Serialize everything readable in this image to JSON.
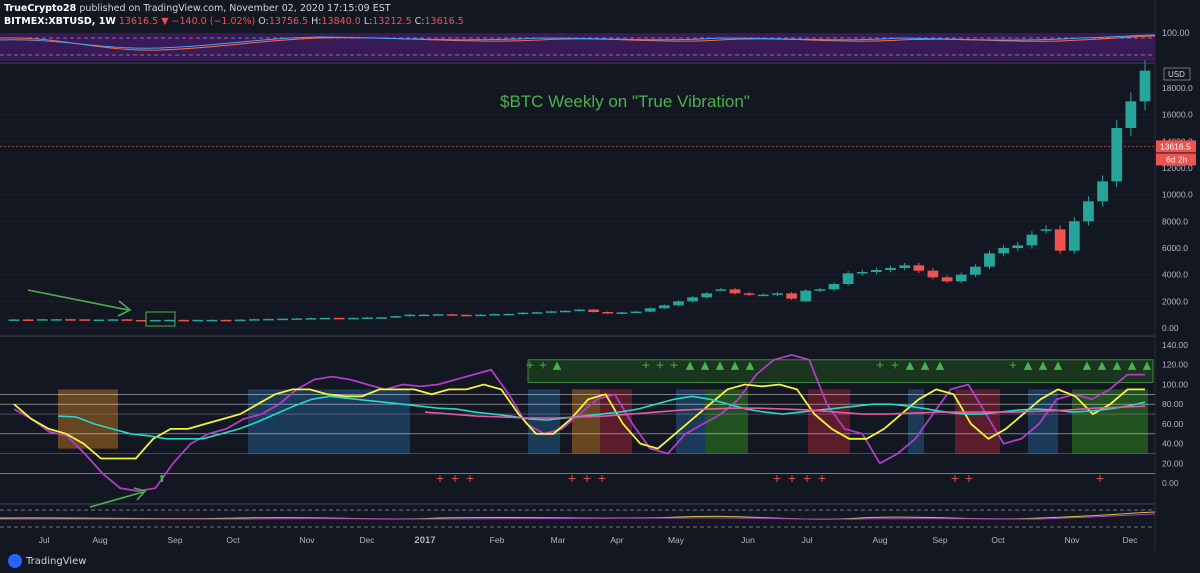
{
  "header": {
    "publisher": "TrueCrypto28",
    "published_text": "published on TradingView.com, November 02, 2020 17:15:09 EST",
    "symbol": "BITMEX:XBTUSD, 1W",
    "last": "13616.5",
    "change": "−140.0 (−1.02%)",
    "o_label": "O:",
    "o_val": "13756.5",
    "h_label": "H:",
    "h_val": "13840.0",
    "l_label": "L:",
    "l_val": "13212.5",
    "c_label": "C:",
    "c_val": "13616.5"
  },
  "annotation": "$BTC Weekly on \"True Vibration\"",
  "price_badge": "13616.5",
  "countdown_badge": "6d 2h",
  "currency": "USD",
  "footer": {
    "brand": "TradingView"
  },
  "colors": {
    "bg": "#131722",
    "up": "#26a69a",
    "down": "#ef5350",
    "annotation": "#4caf50",
    "osc_fill": "#4a1f6e",
    "vib_purple": "#b03cc7",
    "vib_yellow": "#f5f53b",
    "vib_cyan": "#26d8c8",
    "vib_pink": "#e05ca0"
  },
  "chart_data": [
    {
      "type": "line",
      "name_panel": "top oscillator",
      "ytick_labels": [
        "100.00"
      ],
      "ylim": [
        0,
        100
      ]
    },
    {
      "type": "candlestick",
      "panel": "price",
      "ylim": [
        0,
        19500
      ],
      "ytick_values": [
        0,
        2000,
        4000,
        6000,
        8000,
        10000,
        12000,
        14000,
        16000,
        18000
      ],
      "ytick_labels": [
        "0.00",
        "2000.0",
        "4000.0",
        "6000.0",
        "8000.0",
        "10000.0",
        "12000.0",
        "14000.0",
        "16000.0",
        "18000.0"
      ],
      "last_price": 13616.5,
      "close": [
        640,
        630,
        660,
        660,
        650,
        620,
        630,
        650,
        600,
        570,
        600,
        610,
        600,
        610,
        610,
        600,
        630,
        660,
        680,
        700,
        720,
        740,
        760,
        740,
        760,
        790,
        800,
        890,
        1000,
        1000,
        1030,
        990,
        950,
        1000,
        1050,
        1060,
        1150,
        1180,
        1250,
        1290,
        1380,
        1200,
        1100,
        1170,
        1230,
        1480,
        1700,
        2000,
        2300,
        2600,
        2900,
        2600,
        2500,
        2500,
        2600,
        2200,
        2800,
        2900,
        3300,
        4100,
        4200,
        4350,
        4500,
        4700,
        4300,
        3800,
        3500,
        4000,
        4600,
        5600,
        6000,
        6200,
        7000,
        7400,
        5800,
        8000,
        9500,
        11000,
        15000,
        17000,
        19300
      ],
      "open": [
        560,
        640,
        630,
        660,
        660,
        650,
        620,
        630,
        650,
        600,
        570,
        600,
        610,
        600,
        610,
        610,
        600,
        630,
        660,
        680,
        700,
        720,
        740,
        760,
        740,
        760,
        790,
        800,
        890,
        1000,
        1000,
        1030,
        990,
        950,
        1000,
        1050,
        1060,
        1150,
        1180,
        1250,
        1290,
        1380,
        1200,
        1100,
        1170,
        1230,
        1480,
        1700,
        2000,
        2300,
        2900,
        2900,
        2600,
        2500,
        2500,
        2600,
        2000,
        2800,
        2900,
        3300,
        4100,
        4200,
        4350,
        4500,
        4700,
        4300,
        3800,
        3500,
        4000,
        4600,
        5600,
        6000,
        6200,
        7400,
        7400,
        5800,
        8000,
        9500,
        11000,
        15000,
        17000
      ]
    },
    {
      "type": "line",
      "panel": "True Vibration oscillator",
      "ylim": [
        -12,
        140
      ],
      "ytick_values": [
        0,
        20,
        40,
        60,
        80,
        100,
        120,
        140
      ],
      "ytick_labels": [
        "0.00",
        "20.00",
        "40.00",
        "60.00",
        "80.00",
        "100.00",
        "120.00",
        "140.00"
      ],
      "x_labels": [
        "Jul",
        "Aug",
        "Sep",
        "Oct",
        "Nov",
        "Dec",
        "2017",
        "Feb",
        "Mar",
        "Apr",
        "May",
        "Jun",
        "Jul",
        "Aug",
        "Sep",
        "Oct",
        "Nov",
        "Dec"
      ],
      "series": [
        {
          "values": [
            75,
            65,
            52,
            48,
            30,
            10,
            -5,
            -8,
            -5,
            20,
            40,
            50,
            55,
            65,
            70,
            80,
            95,
            105,
            108,
            105,
            100,
            95,
            100,
            98,
            100,
            105,
            110,
            115,
            90,
            60,
            50,
            55,
            70,
            85,
            90,
            60,
            35,
            30,
            50,
            60,
            70,
            85,
            110,
            125,
            130,
            125,
            80,
            55,
            50,
            20,
            30,
            45,
            70,
            95,
            100,
            70,
            40,
            45,
            60,
            85,
            90,
            85,
            95,
            110,
            110
          ]
        },
        {
          "values": [
            80,
            65,
            55,
            50,
            40,
            25,
            25,
            25,
            45,
            55,
            55,
            60,
            65,
            70,
            80,
            90,
            95,
            95,
            90,
            88,
            88,
            95,
            95,
            95,
            90,
            95,
            95,
            100,
            95,
            70,
            50,
            50,
            65,
            85,
            90,
            60,
            40,
            35,
            50,
            65,
            80,
            95,
            100,
            98,
            100,
            95,
            70,
            55,
            45,
            45,
            55,
            70,
            85,
            95,
            90,
            60,
            45,
            55,
            70,
            85,
            95,
            88,
            70,
            80,
            95,
            95
          ]
        },
        {
          "values": [
            68,
            67,
            60,
            55,
            50,
            48,
            45,
            45,
            45,
            50,
            55,
            62,
            70,
            78,
            85,
            88,
            86,
            84,
            82,
            80,
            78,
            76,
            75,
            72,
            70,
            68,
            65,
            64,
            66,
            68,
            70,
            72,
            75,
            80,
            85,
            88,
            85,
            80,
            75,
            72,
            70,
            72,
            74,
            76,
            78,
            80,
            80,
            78,
            75,
            72,
            70,
            70,
            72,
            74,
            75,
            74,
            72,
            73,
            75,
            78,
            82
          ]
        },
        {
          "values": [
            72,
            70,
            68,
            67,
            66,
            66,
            67,
            68,
            70,
            72,
            74,
            75,
            76,
            76,
            75,
            74,
            72,
            70,
            70,
            71,
            72,
            72,
            72,
            72,
            73,
            74,
            76,
            77,
            78
          ]
        }
      ]
    }
  ]
}
